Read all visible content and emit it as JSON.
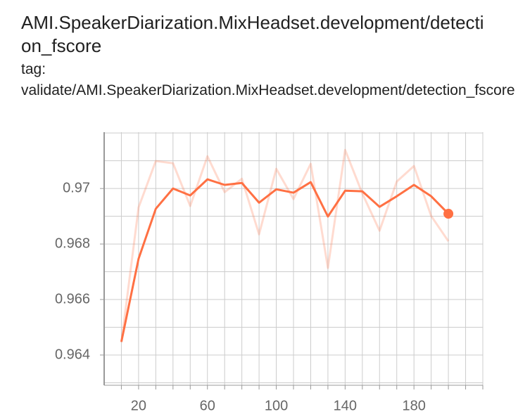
{
  "chart_data": {
    "type": "line",
    "title": "AMI.SpeakerDiarization.MixHeadset.development/detection_fscore",
    "tag": "tag: validate/AMI.SpeakerDiarization.MixHeadset.development/detection_fscore",
    "x": [
      10,
      20,
      30,
      40,
      50,
      60,
      70,
      80,
      90,
      100,
      110,
      120,
      130,
      140,
      150,
      160,
      170,
      180,
      190,
      200
    ],
    "series": [
      {
        "color": "#ff7043",
        "opacity": 0.25,
        "values": [
          0.96445,
          0.96932,
          0.97099,
          0.97091,
          0.96937,
          0.97116,
          0.96987,
          0.97035,
          0.96835,
          0.97071,
          0.96962,
          0.97089,
          0.96714,
          0.97139,
          0.96982,
          0.96848,
          0.97025,
          0.97081,
          0.96901,
          0.9681
        ]
      },
      {
        "color": "#ff7043",
        "opacity": 1,
        "end_marker": true,
        "values": [
          0.96448,
          0.96747,
          0.96927,
          0.97,
          0.96975,
          0.97033,
          0.97013,
          0.9702,
          0.96949,
          0.96997,
          0.96985,
          0.97023,
          0.96899,
          0.96992,
          0.9699,
          0.96934,
          0.96972,
          0.97013,
          0.96972,
          0.96909
        ]
      }
    ],
    "xlim": [
      0,
      220
    ],
    "xticks": [
      20,
      60,
      100,
      140,
      180
    ],
    "xgrid": [
      10,
      20,
      30,
      40,
      50,
      60,
      70,
      80,
      90,
      100,
      110,
      120,
      130,
      140,
      150,
      160,
      170,
      180,
      190,
      200,
      210,
      220
    ],
    "ylim": [
      0.96291,
      0.97203
    ],
    "yticks": [
      0.964,
      0.966,
      0.968,
      0.97
    ],
    "ygrid": [
      0.963,
      0.964,
      0.965,
      0.966,
      0.967,
      0.968,
      0.969,
      0.97,
      0.971,
      0.972
    ],
    "grid": true
  }
}
